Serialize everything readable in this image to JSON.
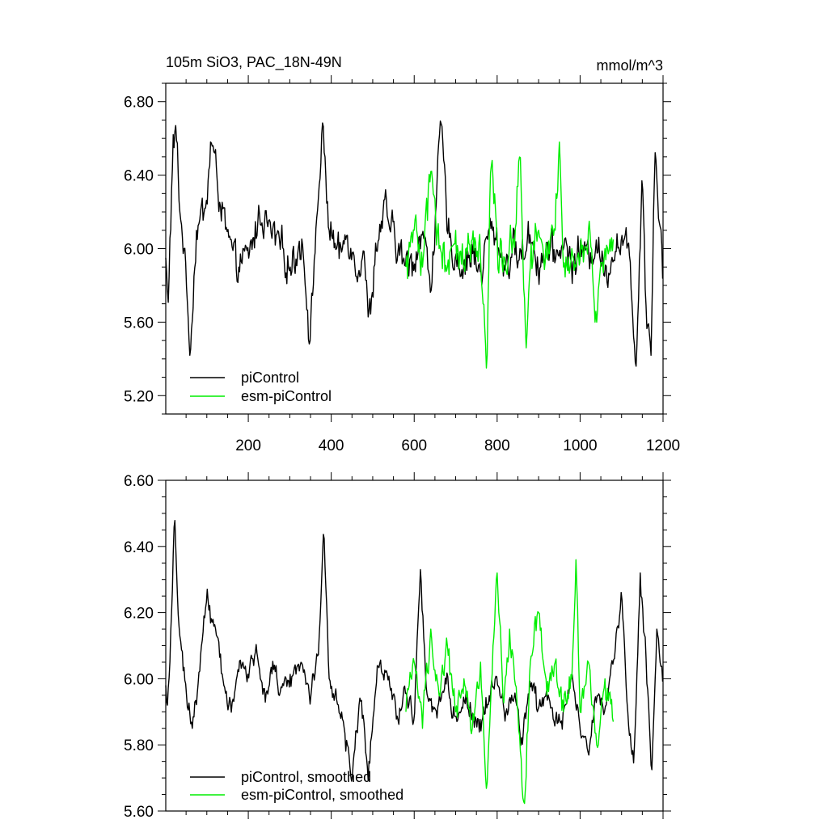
{
  "chart_data": [
    {
      "type": "line",
      "title_left": "105m SiO3, PAC_18N-49N",
      "title_right": "mmol/m^3",
      "xlim": [
        1,
        1200
      ],
      "ylim": [
        5.1,
        6.9
      ],
      "x_ticks_major": [
        200,
        400,
        600,
        800,
        1000,
        1200
      ],
      "x_tick_labels": [
        "200",
        "400",
        "600",
        "800",
        "1000",
        "1200"
      ],
      "y_ticks_major": [
        5.2,
        5.6,
        6.0,
        6.4,
        6.8
      ],
      "y_tick_labels": [
        "5.20",
        "5.60",
        "6.00",
        "6.40",
        "6.80"
      ],
      "legend_position": "bottom-left",
      "series": [
        {
          "name": "piControl",
          "color": "#000000",
          "x_start": 1,
          "x_end": 1200,
          "anchors": [
            [
              1,
              5.95
            ],
            [
              6,
              5.66
            ],
            [
              12,
              6.1
            ],
            [
              18,
              6.5
            ],
            [
              25,
              6.67
            ],
            [
              35,
              6.2
            ],
            [
              45,
              6.0
            ],
            [
              60,
              5.46
            ],
            [
              75,
              6.1
            ],
            [
              100,
              6.25
            ],
            [
              110,
              6.6
            ],
            [
              130,
              6.3
            ],
            [
              150,
              6.05
            ],
            [
              170,
              5.9
            ],
            [
              200,
              5.95
            ],
            [
              230,
              6.2
            ],
            [
              250,
              6.1
            ],
            [
              280,
              6.0
            ],
            [
              300,
              5.9
            ],
            [
              330,
              6.05
            ],
            [
              350,
              5.49
            ],
            [
              360,
              6.0
            ],
            [
              380,
              6.64
            ],
            [
              395,
              6.1
            ],
            [
              420,
              5.95
            ],
            [
              440,
              6.1
            ],
            [
              460,
              5.9
            ],
            [
              480,
              6.0
            ],
            [
              490,
              5.57
            ],
            [
              510,
              6.05
            ],
            [
              530,
              6.2
            ],
            [
              560,
              6.0
            ],
            [
              580,
              5.9
            ],
            [
              600,
              5.95
            ],
            [
              620,
              6.1
            ],
            [
              640,
              5.8
            ],
            [
              665,
              6.68
            ],
            [
              680,
              6.1
            ],
            [
              700,
              5.95
            ],
            [
              720,
              5.9
            ],
            [
              740,
              6.0
            ],
            [
              760,
              5.85
            ],
            [
              780,
              6.1
            ],
            [
              800,
              6.05
            ],
            [
              820,
              5.9
            ],
            [
              840,
              6.0
            ],
            [
              860,
              5.95
            ],
            [
              880,
              6.1
            ],
            [
              900,
              5.9
            ],
            [
              920,
              6.0
            ],
            [
              940,
              5.95
            ],
            [
              960,
              6.05
            ],
            [
              980,
              5.9
            ],
            [
              1000,
              6.0
            ],
            [
              1020,
              5.95
            ],
            [
              1040,
              6.05
            ],
            [
              1060,
              5.85
            ],
            [
              1080,
              6.0
            ],
            [
              1100,
              6.05
            ],
            [
              1120,
              5.95
            ],
            [
              1135,
              5.36
            ],
            [
              1150,
              6.45
            ],
            [
              1160,
              5.6
            ],
            [
              1172,
              5.53
            ],
            [
              1180,
              6.59
            ],
            [
              1190,
              6.2
            ],
            [
              1200,
              5.85
            ]
          ],
          "noise_amplitude": 0.12
        },
        {
          "name": "esm-piControl",
          "color": "#00ee00",
          "x_start": 580,
          "x_end": 1080,
          "anchors": [
            [
              580,
              5.9
            ],
            [
              600,
              6.1
            ],
            [
              620,
              5.9
            ],
            [
              640,
              6.42
            ],
            [
              660,
              6.0
            ],
            [
              680,
              5.9
            ],
            [
              700,
              6.1
            ],
            [
              720,
              5.9
            ],
            [
              740,
              6.05
            ],
            [
              760,
              5.95
            ],
            [
              775,
              5.4
            ],
            [
              785,
              6.58
            ],
            [
              800,
              6.05
            ],
            [
              820,
              5.9
            ],
            [
              840,
              6.05
            ],
            [
              855,
              6.5
            ],
            [
              870,
              5.46
            ],
            [
              880,
              5.9
            ],
            [
              900,
              6.1
            ],
            [
              920,
              5.95
            ],
            [
              940,
              6.1
            ],
            [
              950,
              6.58
            ],
            [
              960,
              5.9
            ],
            [
              980,
              6.0
            ],
            [
              1000,
              5.95
            ],
            [
              1020,
              6.1
            ],
            [
              1040,
              5.6
            ],
            [
              1060,
              6.0
            ],
            [
              1080,
              6.05
            ]
          ],
          "noise_amplitude": 0.14
        }
      ]
    },
    {
      "type": "line",
      "xlim": [
        1,
        1200
      ],
      "ylim": [
        5.6,
        6.6
      ],
      "y_ticks_major": [
        5.6,
        5.8,
        6.0,
        6.2,
        6.4,
        6.6
      ],
      "y_tick_labels": [
        "5.60",
        "5.80",
        "6.00",
        "6.20",
        "6.40",
        "6.60"
      ],
      "x_ticks_major": [
        200,
        400,
        600,
        800,
        1000,
        1200
      ],
      "legend_position": "bottom-left",
      "series": [
        {
          "name": "piControl, smoothed",
          "color": "#000000",
          "x_start": 1,
          "x_end": 1200,
          "anchors": [
            [
              1,
              5.98
            ],
            [
              5,
              5.92
            ],
            [
              15,
              6.2
            ],
            [
              22,
              6.51
            ],
            [
              30,
              6.2
            ],
            [
              40,
              6.1
            ],
            [
              50,
              5.95
            ],
            [
              65,
              5.85
            ],
            [
              80,
              6.0
            ],
            [
              100,
              6.25
            ],
            [
              120,
              6.15
            ],
            [
              140,
              6.0
            ],
            [
              160,
              5.9
            ],
            [
              180,
              6.05
            ],
            [
              200,
              6.0
            ],
            [
              220,
              6.1
            ],
            [
              240,
              5.95
            ],
            [
              260,
              6.05
            ],
            [
              280,
              5.95
            ],
            [
              300,
              6.0
            ],
            [
              330,
              6.05
            ],
            [
              350,
              5.95
            ],
            [
              370,
              6.1
            ],
            [
              382,
              6.47
            ],
            [
              395,
              6.0
            ],
            [
              410,
              5.95
            ],
            [
              430,
              5.85
            ],
            [
              450,
              5.7
            ],
            [
              470,
              5.95
            ],
            [
              490,
              5.72
            ],
            [
              510,
              6.05
            ],
            [
              540,
              6.0
            ],
            [
              560,
              5.9
            ],
            [
              580,
              5.95
            ],
            [
              600,
              5.9
            ],
            [
              615,
              6.33
            ],
            [
              630,
              5.95
            ],
            [
              650,
              5.9
            ],
            [
              680,
              6.0
            ],
            [
              700,
              5.85
            ],
            [
              720,
              5.95
            ],
            [
              740,
              5.9
            ],
            [
              760,
              5.85
            ],
            [
              780,
              5.95
            ],
            [
              800,
              6.0
            ],
            [
              820,
              5.9
            ],
            [
              840,
              5.95
            ],
            [
              860,
              5.8
            ],
            [
              880,
              6.0
            ],
            [
              900,
              5.9
            ],
            [
              920,
              5.95
            ],
            [
              940,
              5.85
            ],
            [
              960,
              5.9
            ],
            [
              980,
              6.0
            ],
            [
              1000,
              5.85
            ],
            [
              1020,
              5.8
            ],
            [
              1040,
              5.95
            ],
            [
              1060,
              5.9
            ],
            [
              1080,
              6.05
            ],
            [
              1100,
              6.25
            ],
            [
              1115,
              5.9
            ],
            [
              1130,
              5.75
            ],
            [
              1145,
              6.32
            ],
            [
              1160,
              6.05
            ],
            [
              1172,
              5.68
            ],
            [
              1185,
              6.15
            ],
            [
              1200,
              6.0
            ]
          ],
          "noise_amplitude": 0.04
        },
        {
          "name": "esm-piControl, smoothed",
          "color": "#00ee00",
          "x_start": 580,
          "x_end": 1080,
          "anchors": [
            [
              580,
              5.9
            ],
            [
              600,
              6.05
            ],
            [
              620,
              5.85
            ],
            [
              640,
              6.15
            ],
            [
              660,
              5.95
            ],
            [
              680,
              6.1
            ],
            [
              700,
              5.9
            ],
            [
              720,
              6.0
            ],
            [
              740,
              5.85
            ],
            [
              760,
              6.05
            ],
            [
              775,
              5.64
            ],
            [
              790,
              6.1
            ],
            [
              800,
              6.32
            ],
            [
              815,
              5.95
            ],
            [
              830,
              6.15
            ],
            [
              850,
              5.9
            ],
            [
              865,
              5.6
            ],
            [
              880,
              6.05
            ],
            [
              900,
              6.2
            ],
            [
              920,
              5.95
            ],
            [
              940,
              6.05
            ],
            [
              960,
              5.9
            ],
            [
              980,
              6.0
            ],
            [
              990,
              6.36
            ],
            [
              1000,
              5.9
            ],
            [
              1020,
              6.05
            ],
            [
              1040,
              5.8
            ],
            [
              1060,
              6.0
            ],
            [
              1080,
              5.87
            ]
          ],
          "noise_amplitude": 0.05
        }
      ]
    }
  ],
  "legend": {
    "top": [
      "piControl",
      "esm-piControl"
    ],
    "bottom": [
      "piControl, smoothed",
      "esm-piControl, smoothed"
    ]
  }
}
